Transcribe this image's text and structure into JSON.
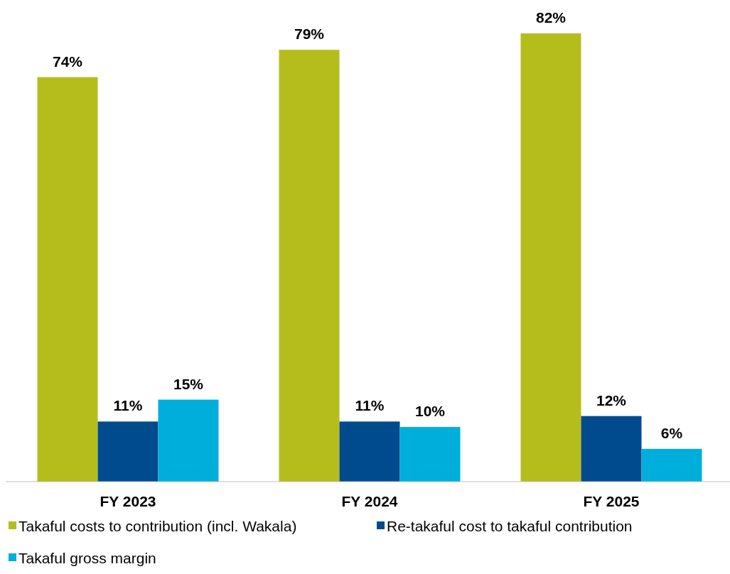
{
  "chart_data": {
    "type": "bar",
    "categories": [
      "FY 2023",
      "FY 2024",
      "FY 2025"
    ],
    "series": [
      {
        "name": "Takaful costs to contribution (incl. Wakala)",
        "color": "#b5bd1d",
        "values": [
          74,
          79,
          82
        ],
        "value_labels": [
          "74%",
          "79%",
          "82%"
        ]
      },
      {
        "name": "Re-takaful cost to takaful contribution",
        "color": "#004b8d",
        "values": [
          11,
          11,
          12
        ],
        "value_labels": [
          "11%",
          "11%",
          "12%"
        ]
      },
      {
        "name": "Takaful gross margin",
        "color": "#00aedb",
        "values": [
          15,
          10,
          6
        ],
        "value_labels": [
          "15%",
          "10%",
          "6%"
        ]
      }
    ],
    "legend": "bottom"
  }
}
